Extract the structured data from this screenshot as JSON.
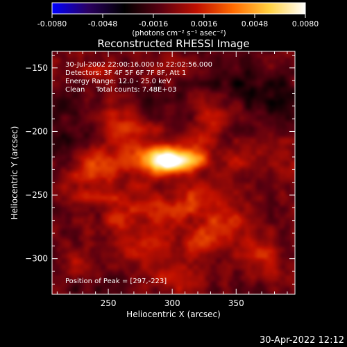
{
  "window": {
    "timestamp": "30-Apr-2022 12:12"
  },
  "colorbar": {
    "ticks": [
      "-0.0080",
      "-0.0048",
      "-0.0016",
      "0.0016",
      "0.0048",
      "0.0080"
    ],
    "label": "(photons cm⁻² s⁻¹ asec⁻²)",
    "range": [
      -0.008,
      0.008
    ],
    "colors": [
      "#0000ff",
      "#2a0060",
      "#000000",
      "#5a0010",
      "#c01000",
      "#ff6a00",
      "#ffd040",
      "#ffffff"
    ]
  },
  "chart_data": {
    "type": "heatmap",
    "title": "Reconstructed RHESSI Image",
    "xlabel": "Heliocentric X (arcsec)",
    "ylabel": "Heliocentric Y (arcsec)",
    "xlim": [
      206,
      396
    ],
    "ylim": [
      -328,
      -137
    ],
    "xticks": [
      250,
      300,
      350
    ],
    "yticks": [
      -150,
      -200,
      -250,
      -300
    ],
    "info_lines": [
      "30-Jul-2002 22:00:16.000 to 22:02:56.000",
      "Detectors: 3F 4F 5F 6F 7F 8F, Att 1",
      "Energy Range: 12.0 - 25.0 keV",
      "Clean     Total counts: 7.48E+03"
    ],
    "peak_label": "Position of Peak = [297,-223]",
    "peak": {
      "x": 297,
      "y": -223,
      "value": 0.008
    },
    "features": [
      {
        "x": 297,
        "y": -223,
        "sx": 14,
        "sy": 7,
        "amp": 0.0095
      },
      {
        "x": 318,
        "y": -221,
        "sx": 8,
        "sy": 5,
        "amp": 0.0025
      },
      {
        "x": 270,
        "y": -220,
        "sx": 18,
        "sy": 16,
        "amp": 0.0022
      },
      {
        "x": 240,
        "y": -226,
        "sx": 10,
        "sy": 9,
        "amp": 0.0022
      },
      {
        "x": 262,
        "y": -190,
        "sx": 12,
        "sy": 10,
        "amp": 0.0018
      },
      {
        "x": 230,
        "y": -245,
        "sx": 12,
        "sy": 10,
        "amp": 0.0018
      },
      {
        "x": 258,
        "y": -268,
        "sx": 10,
        "sy": 14,
        "amp": 0.0024
      },
      {
        "x": 295,
        "y": -262,
        "sx": 14,
        "sy": 9,
        "amp": 0.0022
      },
      {
        "x": 322,
        "y": -252,
        "sx": 10,
        "sy": 10,
        "amp": 0.0024
      },
      {
        "x": 345,
        "y": -270,
        "sx": 14,
        "sy": 14,
        "amp": 0.0022
      },
      {
        "x": 280,
        "y": -290,
        "sx": 14,
        "sy": 12,
        "amp": 0.002
      },
      {
        "x": 320,
        "y": -285,
        "sx": 14,
        "sy": 10,
        "amp": 0.002
      },
      {
        "x": 370,
        "y": -300,
        "sx": 10,
        "sy": 12,
        "amp": 0.0022
      },
      {
        "x": 305,
        "y": -315,
        "sx": 16,
        "sy": 9,
        "amp": 0.0022
      },
      {
        "x": 335,
        "y": -185,
        "sx": 10,
        "sy": 8,
        "amp": 0.0018
      },
      {
        "x": 320,
        "y": -205,
        "sx": 9,
        "sy": 8,
        "amp": 0.002
      },
      {
        "x": 240,
        "y": -150,
        "sx": 10,
        "sy": 7,
        "amp": 0.0014
      },
      {
        "x": 300,
        "y": -150,
        "sx": 12,
        "sy": 7,
        "amp": 0.001
      },
      {
        "x": 385,
        "y": -230,
        "sx": 8,
        "sy": 14,
        "amp": 0.0014
      },
      {
        "x": 350,
        "y": -222,
        "sx": 8,
        "sy": 8,
        "amp": 0.0016
      },
      {
        "x": 220,
        "y": -305,
        "sx": 8,
        "sy": 8,
        "amp": 0.0012
      },
      {
        "x": 350,
        "y": -165,
        "sx": 16,
        "sy": 10,
        "amp": -0.0016
      },
      {
        "x": 380,
        "y": -175,
        "sx": 12,
        "sy": 14,
        "amp": -0.002
      },
      {
        "x": 215,
        "y": -205,
        "sx": 10,
        "sy": 10,
        "amp": -0.0016
      },
      {
        "x": 285,
        "y": -175,
        "sx": 10,
        "sy": 8,
        "amp": -0.0012
      },
      {
        "x": 212,
        "y": -180,
        "sx": 8,
        "sy": 8,
        "amp": -0.001
      },
      {
        "x": 365,
        "y": -325,
        "sx": 10,
        "sy": 6,
        "amp": -0.001
      },
      {
        "x": 235,
        "y": -322,
        "sx": 12,
        "sy": 6,
        "amp": -0.0008
      }
    ]
  }
}
